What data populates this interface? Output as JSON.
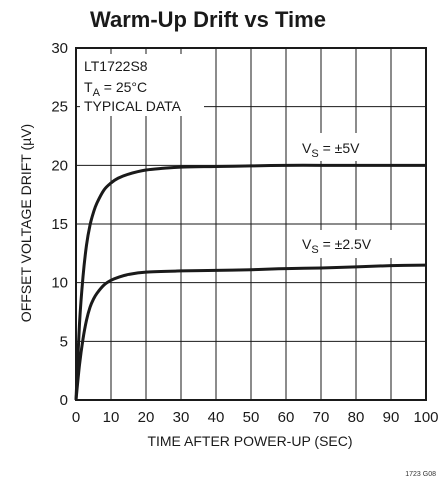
{
  "chart_data": {
    "type": "line",
    "title": "Warm-Up Drift vs Time",
    "xlabel": "TIME AFTER POWER-UP (SEC)",
    "ylabel": "OFFSET VOLTAGE DRIFT (µV)",
    "xlim": [
      0,
      100
    ],
    "ylim": [
      0,
      30
    ],
    "x_ticks": [
      "0",
      "10",
      "20",
      "30",
      "40",
      "50",
      "60",
      "70",
      "80",
      "90",
      "100"
    ],
    "y_ticks": [
      "0",
      "5",
      "10",
      "15",
      "20",
      "25",
      "30"
    ],
    "grid": true,
    "annotations": {
      "part": "LT1722S8",
      "temp_main": "T",
      "temp_sub": "A",
      "temp_rest": " = 25°C",
      "typical": "TYPICAL DATA"
    },
    "series": [
      {
        "label_main": "V",
        "label_sub": "S",
        "label_rest": " = ±5V",
        "x": [
          0,
          1,
          2,
          3,
          4,
          5,
          6,
          8,
          10,
          12,
          15,
          20,
          25,
          30,
          40,
          50,
          60,
          70,
          80,
          90,
          100
        ],
        "y": [
          0,
          6.5,
          10.5,
          13.2,
          14.9,
          16.0,
          16.8,
          17.9,
          18.5,
          18.9,
          19.25,
          19.6,
          19.75,
          19.85,
          19.9,
          19.95,
          20.0,
          20.0,
          20.0,
          20.0,
          20.0
        ]
      },
      {
        "label_main": "V",
        "label_sub": "S",
        "label_rest": " = ±2.5V",
        "x": [
          0,
          1,
          2,
          3,
          4,
          5,
          6,
          8,
          10,
          12,
          15,
          20,
          30,
          40,
          50,
          60,
          70,
          80,
          90,
          100
        ],
        "y": [
          0,
          3.0,
          5.2,
          6.8,
          7.9,
          8.6,
          9.1,
          9.8,
          10.2,
          10.45,
          10.7,
          10.9,
          11.0,
          11.05,
          11.1,
          11.2,
          11.25,
          11.35,
          11.45,
          11.5
        ]
      }
    ],
    "footnote": "1723 G08",
    "colors": {
      "line": "#1a1a1a",
      "grid": "#1a1a1a",
      "background": "#ffffff"
    }
  }
}
